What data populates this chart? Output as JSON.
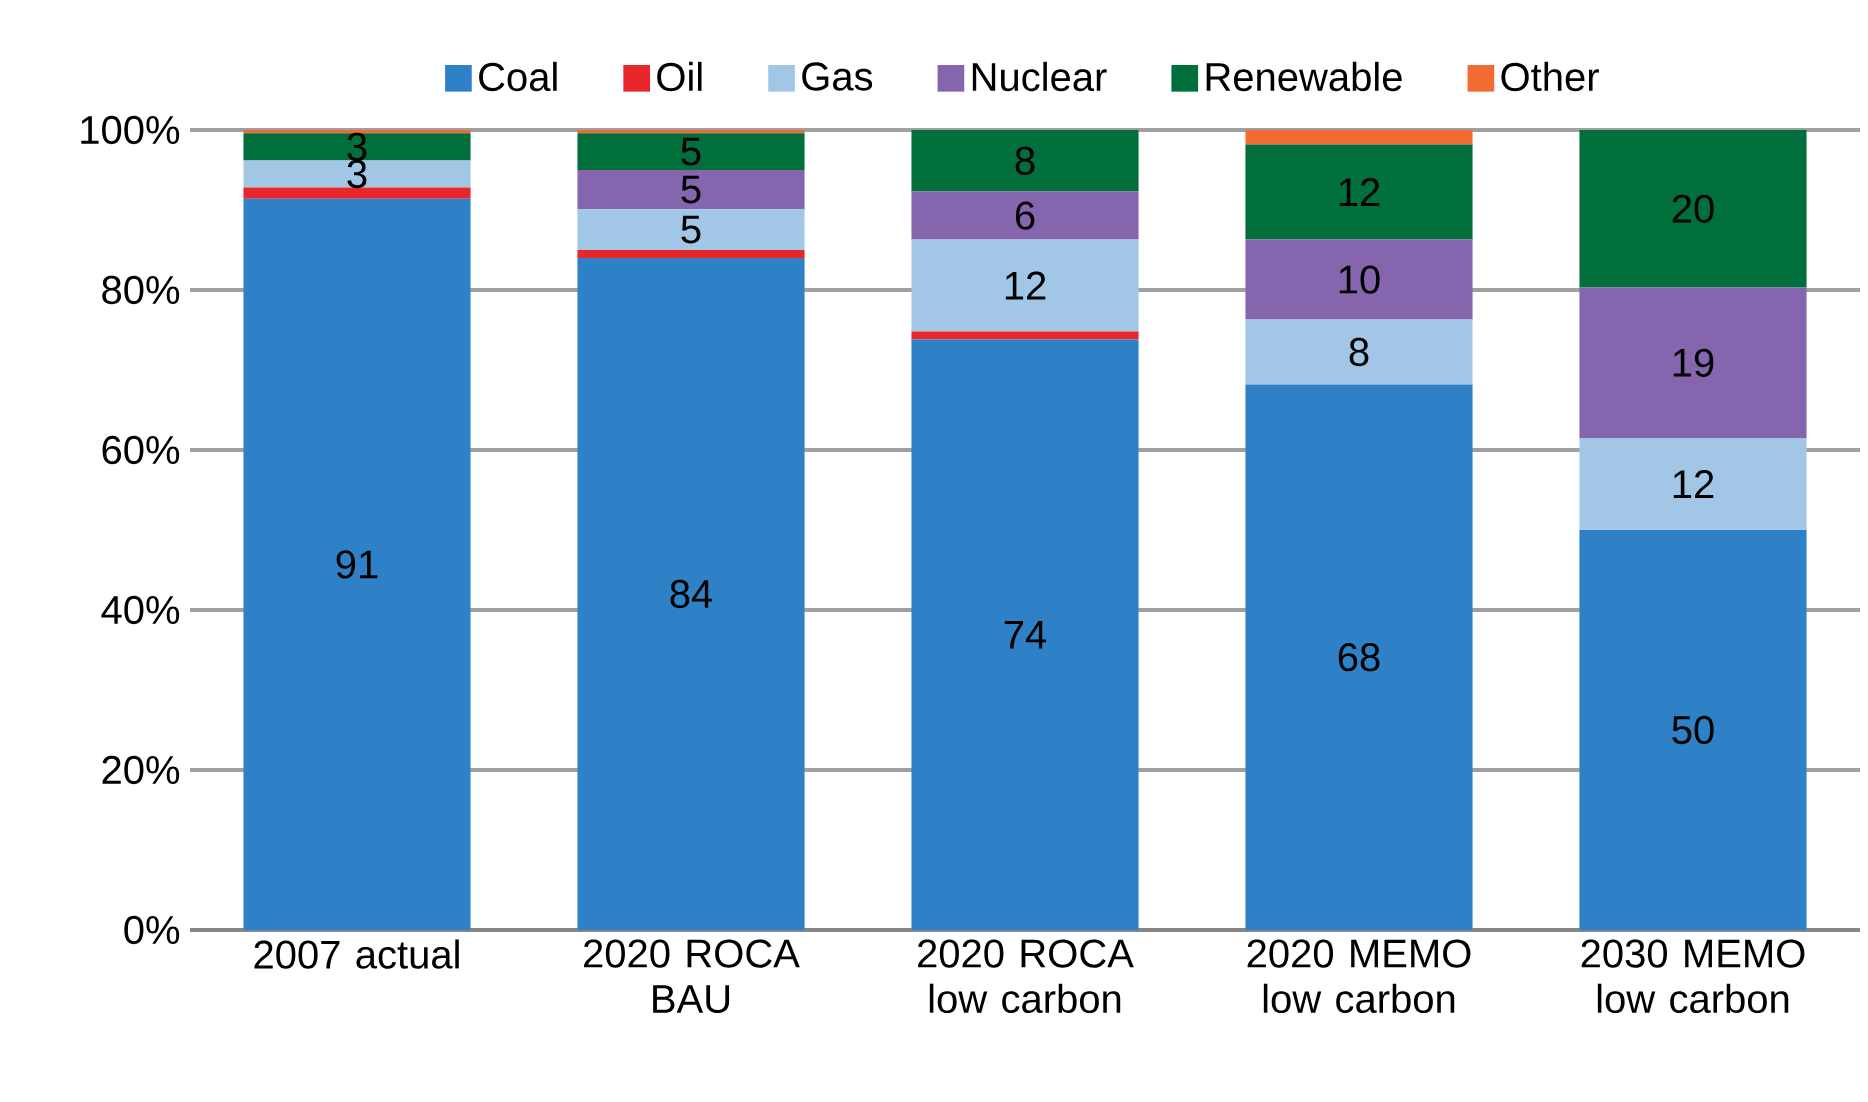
{
  "chart_data": {
    "type": "bar",
    "stacked": true,
    "categories": [
      "2007 actual",
      "2020 ROCA BAU",
      "2020 ROCA low carbon",
      "2020 MEMO low carbon",
      "2030 MEMO low carbon"
    ],
    "series": [
      {
        "name": "Coal",
        "color": "#2e81c6",
        "values": [
          91.4,
          84.0,
          73.8,
          68.2,
          50
        ],
        "value_labels": [
          "91",
          "84",
          "74",
          "68",
          "50"
        ]
      },
      {
        "name": "Oil",
        "color": "#e8262b",
        "values": [
          1.4,
          1,
          1,
          0,
          0
        ],
        "value_labels": [
          null,
          null,
          null,
          null,
          null
        ]
      },
      {
        "name": "Gas",
        "color": "#a2c6e6",
        "values": [
          3.4,
          5.1,
          11.5,
          8.1,
          11.5
        ],
        "value_labels": [
          "3",
          "5",
          "12",
          "8",
          "12"
        ]
      },
      {
        "name": "Nuclear",
        "color": "#8565ad",
        "values": [
          0,
          4.9,
          6,
          10,
          18.8
        ],
        "value_labels": [
          null,
          "5",
          "6",
          "10",
          "19"
        ]
      },
      {
        "name": "Renewable",
        "color": "#006f3c",
        "values": [
          3.4,
          4.6,
          7.7,
          11.9,
          19.7
        ],
        "value_labels": [
          "3",
          "5",
          "8",
          "12",
          "20"
        ]
      },
      {
        "name": "Other",
        "color": "#f26b32",
        "values": [
          0.4,
          0.4,
          0,
          1.8,
          0
        ],
        "value_labels": [
          null,
          null,
          null,
          null,
          null
        ]
      }
    ],
    "ylim": [
      0,
      100
    ],
    "yticks": [
      {
        "value": 0,
        "label": "0%"
      },
      {
        "value": 20,
        "label": "20%"
      },
      {
        "value": 40,
        "label": "40%"
      },
      {
        "value": 60,
        "label": "60%"
      },
      {
        "value": 80,
        "label": "80%"
      },
      {
        "value": 100,
        "label": "100%"
      }
    ],
    "grid": "y",
    "legend": "top"
  }
}
